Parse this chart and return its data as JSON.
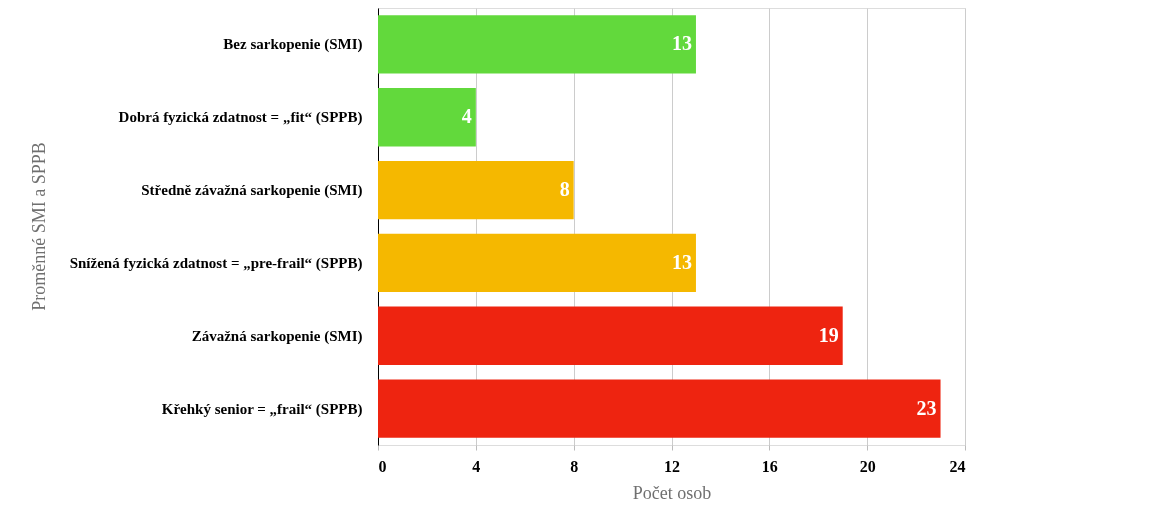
{
  "chart_data": {
    "type": "bar",
    "orientation": "horizontal",
    "xlabel": "Počet osob",
    "ylabel": "Proměnné SMI a SPPB",
    "categories": [
      "Bez sarkopenie (SMI)",
      "Dobrá fyzická zdatnost = „fit“ (SPPB)",
      "Středně závažná sarkopenie (SMI)",
      "Snížená fyzická zdatnost = „pre-frail“ (SPPB)",
      "Závažná sarkopenie (SMI)",
      "Křehký senior = „frail“ (SPPB)"
    ],
    "values": [
      13,
      4,
      8,
      13,
      19,
      23
    ],
    "colors": [
      "#62d93c",
      "#62d93c",
      "#f5b800",
      "#f5b800",
      "#ee2410",
      "#ee2410"
    ],
    "xlim": [
      0,
      24
    ],
    "xticks": [
      0,
      4,
      8,
      12,
      16,
      20,
      24
    ],
    "grid": "x",
    "data_labels": true,
    "legend": false
  }
}
